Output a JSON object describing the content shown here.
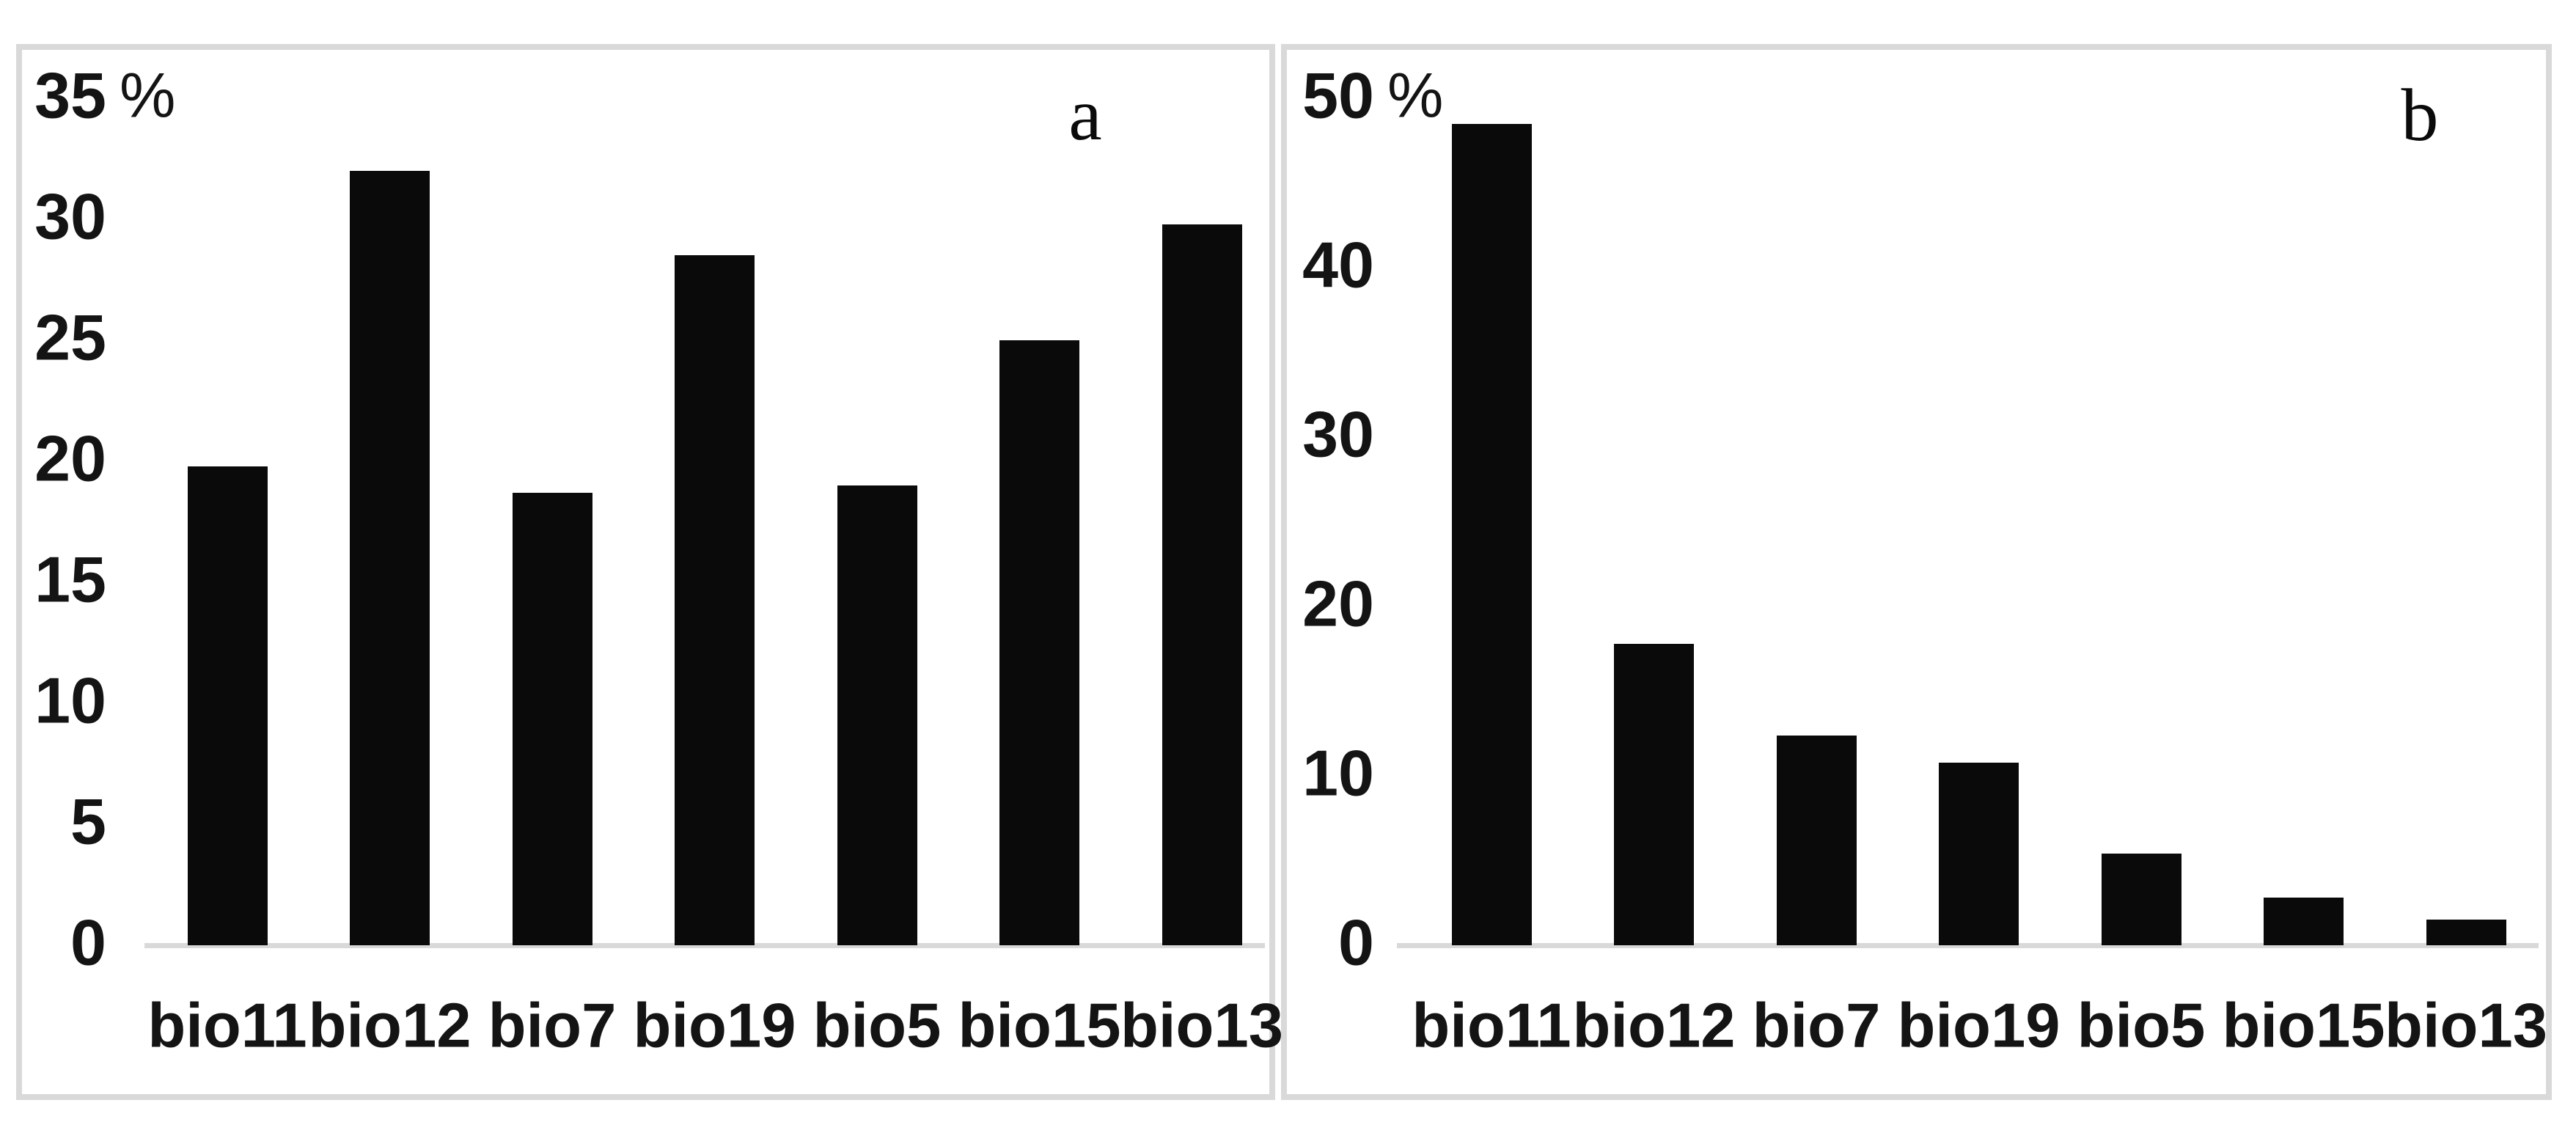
{
  "figure": {
    "background": "#ffffff",
    "border_color": "#d9d9d9",
    "axis_line_color": "#d9d9d9",
    "bar_color": "#0a0a0a",
    "text_color": "#141414"
  },
  "chart_data": [
    {
      "type": "bar",
      "panel_label": "a",
      "categories": [
        "bio11",
        "bio12",
        "bio7",
        "bio19",
        "bio5",
        "bio15",
        "bio13"
      ],
      "values": [
        19.8,
        32.0,
        18.7,
        28.5,
        19.0,
        25.0,
        29.8
      ],
      "title": "",
      "xlabel": "",
      "ylabel": "%",
      "ylim": [
        0,
        35
      ],
      "ytick_step": 5,
      "yticks": [
        0,
        5,
        10,
        15,
        20,
        25,
        30
      ],
      "ymax_label": {
        "value": 35,
        "text": "35",
        "suffix": "%"
      },
      "grid": false,
      "legend": null
    },
    {
      "type": "bar",
      "panel_label": "b",
      "categories": [
        "bio11",
        "bio12",
        "bio7",
        "bio19",
        "bio5",
        "bio15",
        "bio13"
      ],
      "values": [
        48.5,
        17.8,
        12.4,
        10.8,
        5.4,
        2.8,
        1.5
      ],
      "title": "",
      "xlabel": "",
      "ylabel": "%",
      "ylim": [
        0,
        50
      ],
      "ytick_step": 10,
      "yticks": [
        0,
        10,
        20,
        30,
        40
      ],
      "ymax_label": {
        "value": 50,
        "text": "50",
        "suffix": "%"
      },
      "grid": false,
      "legend": null
    }
  ]
}
